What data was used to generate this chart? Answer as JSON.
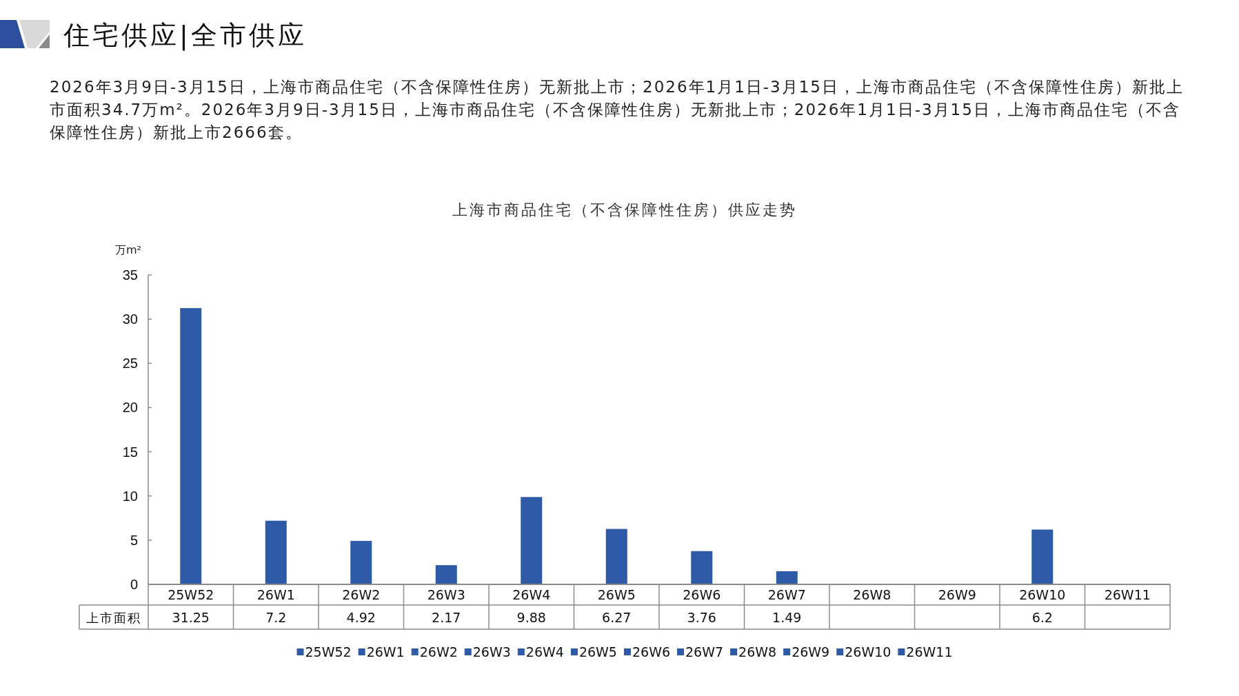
{
  "chart_data": {
    "type": "bar",
    "title": "上海市商品住宅（不含保障性住房）供应走势",
    "annotations": [
      "住宅供应|全市供应",
      "2026年3月9日-3月15日，上海市商品住宅（不含保障性住房）无新批上市；2026年1月1日-3月15日，上海市商品住宅（不含保障性住房）新批上市面积34.7万m²。2026年3月9日-3月15日，上海市商品住宅（不含保障性住房）无新批上市；2026年1月1日-3月15日，上海市商品住宅（不含保障性住房）新批上市2666套。"
    ],
    "ylabel": "万m²",
    "categories": [
      "25W52",
      "26W1",
      "26W2",
      "26W3",
      "26W4",
      "26W5",
      "26W6",
      "26W7",
      "26W8",
      "26W9",
      "26W10",
      "26W11"
    ],
    "series": [
      {
        "name": "上市面积",
        "color": "#2e5aa7",
        "values": [
          31.25,
          7.2,
          4.92,
          2.17,
          9.88,
          6.27,
          3.76,
          1.49,
          null,
          null,
          6.2,
          null
        ]
      }
    ],
    "ylim": [
      0,
      35
    ],
    "yticks": [
      0,
      5,
      10,
      15,
      20,
      25,
      30,
      35
    ],
    "data_labels": true,
    "legend": "bottom"
  }
}
